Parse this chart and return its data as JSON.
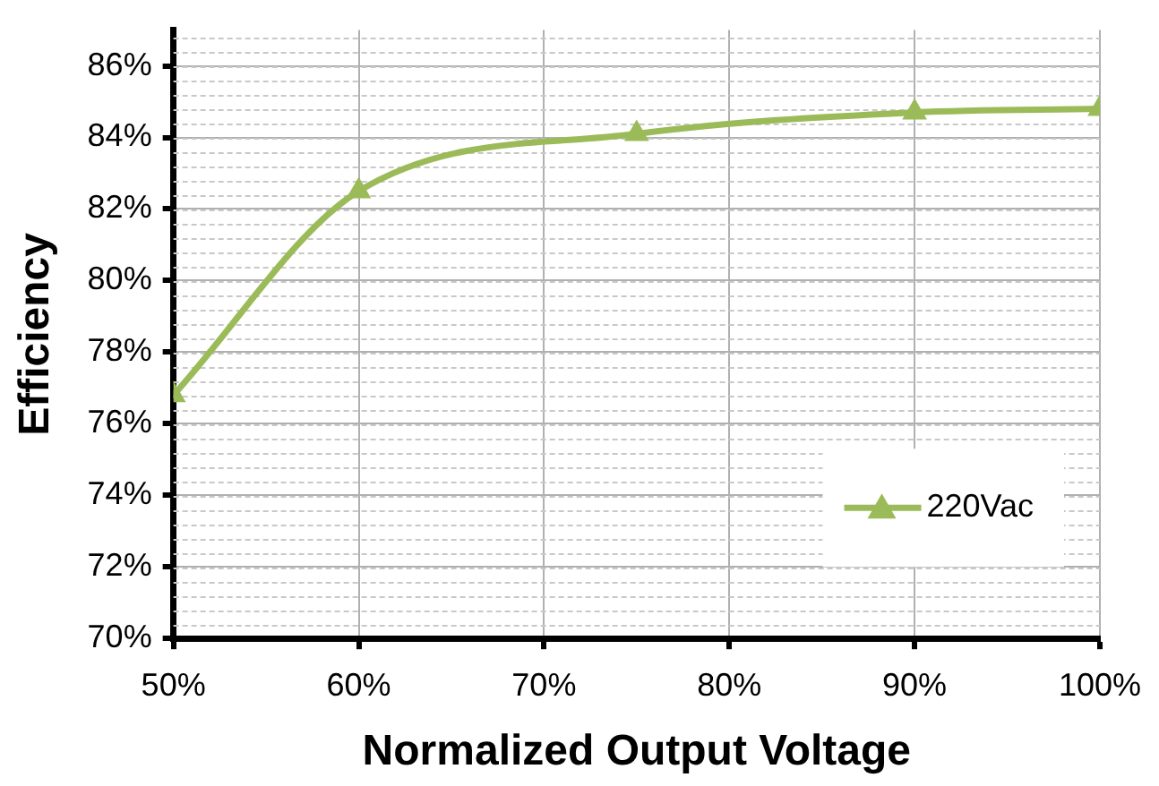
{
  "chart_data": {
    "type": "line",
    "xlabel": "Normalized Output Voltage",
    "ylabel": "Efficiency",
    "x": [
      50,
      60,
      75,
      90,
      100
    ],
    "series": [
      {
        "name": "220Vac",
        "color": "#9bbb59",
        "values": [
          76.8,
          82.5,
          84.1,
          84.7,
          84.8
        ]
      }
    ],
    "xlim": [
      50,
      100
    ],
    "xticks": [
      {
        "value": 50,
        "label": "50%"
      },
      {
        "value": 60,
        "label": "60%"
      },
      {
        "value": 70,
        "label": "70%"
      },
      {
        "value": 80,
        "label": "80%"
      },
      {
        "value": 90,
        "label": "90%"
      },
      {
        "value": 100,
        "label": "100%"
      }
    ],
    "ylim": [
      70,
      87
    ],
    "yticks": [
      {
        "value": 70,
        "label": "70%"
      },
      {
        "value": 72,
        "label": "72%"
      },
      {
        "value": 74,
        "label": "74%"
      },
      {
        "value": 76,
        "label": "76%"
      },
      {
        "value": 78,
        "label": "78%"
      },
      {
        "value": 80,
        "label": "80%"
      },
      {
        "value": 82,
        "label": "82%"
      },
      {
        "value": 84,
        "label": "84%"
      },
      {
        "value": 86,
        "label": "86%"
      }
    ],
    "grid": true,
    "marker": "triangle",
    "line_style": "solid",
    "legend": "bottom right"
  }
}
